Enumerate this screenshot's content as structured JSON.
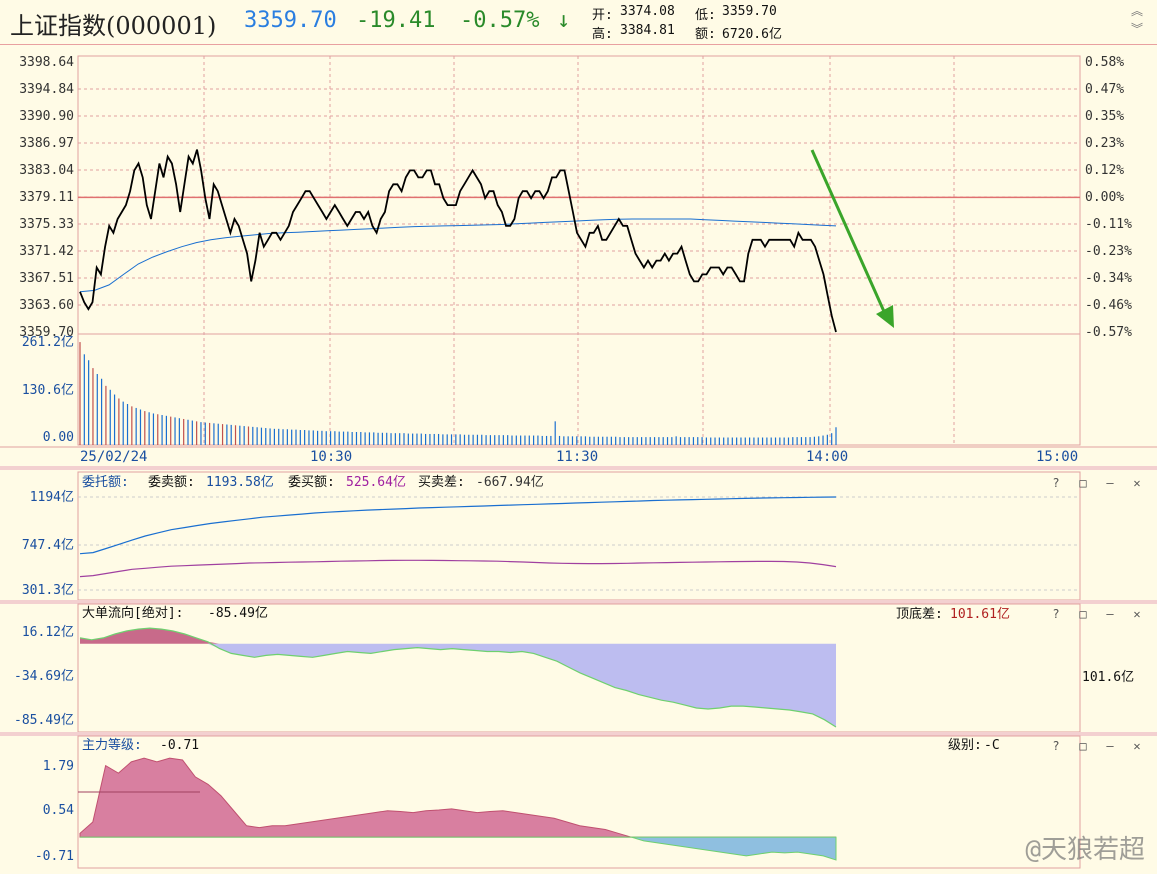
{
  "header": {
    "title": "上证指数(000001)",
    "price": "3359.70",
    "change": "-19.41",
    "change_pct": "-0.57%",
    "arrow": "↓",
    "open_label": "开:",
    "open": "3374.08",
    "low_label": "低:",
    "low": "3359.70",
    "high_label": "高:",
    "high": "3384.81",
    "amount_label": "额:",
    "amount": "6720.6亿"
  },
  "colors": {
    "up": "#c0504d",
    "down": "#2a8a2a",
    "price_line": "#000000",
    "avg_line": "#1a6fd0",
    "ref_line": "#e07070",
    "grid": "#e0a0a0",
    "text_blue": "#1a4fa0"
  },
  "icons": [
    "expand-up-icon",
    "collapse-down-icon",
    "help-icon",
    "maximize-icon",
    "minimize-icon",
    "close-icon"
  ],
  "chart_data": [
    {
      "type": "line",
      "name": "price",
      "y_left_ticks": [
        "3398.64",
        "3394.84",
        "3390.90",
        "3386.97",
        "3383.04",
        "3379.11",
        "3375.33",
        "3371.42",
        "3367.51",
        "3363.60",
        "3359.70"
      ],
      "y_right_ticks": [
        "0.58%",
        "0.47%",
        "0.35%",
        "0.23%",
        "0.12%",
        "0.00%",
        "-0.11%",
        "-0.23%",
        "-0.34%",
        "-0.46%",
        "-0.57%"
      ],
      "ylim": [
        3359.7,
        3398.64
      ],
      "prev_close": 3379.11,
      "x_ticks": [
        "25/02/24",
        "10:30",
        "11:30",
        "14:00",
        "15:00"
      ],
      "price": [
        3365.5,
        3364,
        3363,
        3364,
        3369,
        3368,
        3372,
        3375,
        3374,
        3376,
        3377,
        3378,
        3380,
        3383,
        3384,
        3382,
        3378,
        3376,
        3380,
        3384,
        3382,
        3385,
        3384,
        3381,
        3377,
        3381,
        3385,
        3384,
        3386,
        3383,
        3379,
        3376,
        3381,
        3380,
        3378,
        3376,
        3374,
        3376,
        3375,
        3373,
        3371,
        3367,
        3370,
        3374,
        3372,
        3373,
        3374,
        3374,
        3373,
        3374,
        3375,
        3377,
        3378,
        3379,
        3380,
        3380,
        3379,
        3378,
        3377,
        3376,
        3377,
        3378,
        3377,
        3376,
        3375,
        3376,
        3377,
        3377,
        3376,
        3377,
        3375,
        3374,
        3376,
        3377,
        3380,
        3381,
        3381,
        3380,
        3382,
        3383,
        3383,
        3382,
        3382,
        3383,
        3383,
        3381,
        3381,
        3379,
        3378,
        3378,
        3378,
        3380,
        3381,
        3382,
        3383,
        3382,
        3381,
        3379,
        3380,
        3380,
        3378,
        3377,
        3375,
        3375,
        3376,
        3379,
        3380,
        3380,
        3379,
        3380,
        3380,
        3379,
        3380,
        3382,
        3382,
        3383,
        3383,
        3380,
        3377,
        3374,
        3373,
        3372,
        3374,
        3374,
        3375,
        3373,
        3373,
        3374,
        3375,
        3376,
        3375,
        3375,
        3373,
        3371,
        3370,
        3369,
        3370,
        3369,
        3370,
        3370,
        3371,
        3370,
        3371,
        3371,
        3372,
        3370,
        3368,
        3367,
        3367,
        3368,
        3368,
        3369,
        3369,
        3369,
        3368,
        3369,
        3369,
        3368,
        3367,
        3367,
        3371,
        3373,
        3373,
        3373,
        3372,
        3373,
        3373,
        3373,
        3373,
        3373,
        3373,
        3372,
        3374,
        3373,
        3373,
        3373,
        3372,
        3370,
        3368,
        3365,
        3362,
        3359.7
      ],
      "avg": [
        3365.5,
        3365.7,
        3366.5,
        3368,
        3369.5,
        3370.5,
        3371.3,
        3372,
        3372.6,
        3373,
        3373.3,
        3373.5,
        3373.7,
        3373.9,
        3374,
        3374.1,
        3374.2,
        3374.3,
        3374.4,
        3374.5,
        3374.6,
        3374.7,
        3374.8,
        3374.9,
        3374.95,
        3375,
        3375.05,
        3375.1,
        3375.15,
        3375.2,
        3375.3,
        3375.4,
        3375.5,
        3375.6,
        3375.7,
        3375.8,
        3375.9,
        3375.95,
        3376,
        3376,
        3376,
        3376,
        3376,
        3375.9,
        3375.8,
        3375.7,
        3375.6,
        3375.5,
        3375.4,
        3375.3,
        3375.2,
        3375.1,
        3375
      ]
    },
    {
      "type": "bar",
      "name": "volume",
      "y_ticks": [
        "261.2亿",
        "130.6亿",
        "0.00"
      ],
      "ylim": [
        0,
        261.2
      ],
      "values": [
        261,
        230,
        215,
        195,
        180,
        168,
        150,
        140,
        128,
        118,
        110,
        104,
        98,
        94,
        90,
        86,
        83,
        80,
        78,
        76,
        74,
        72,
        70,
        68,
        66,
        64,
        62,
        60,
        58,
        57,
        56,
        55,
        54,
        53,
        52,
        51,
        50,
        49,
        48,
        47,
        46,
        45,
        44,
        43,
        42,
        41,
        41,
        40,
        40,
        39,
        39,
        38,
        38,
        37,
        37,
        36,
        36,
        35,
        35,
        35,
        34,
        34,
        34,
        33,
        33,
        33,
        32,
        32,
        32,
        31,
        31,
        31,
        30,
        30,
        30,
        30,
        29,
        29,
        29,
        29,
        28,
        28,
        28,
        28,
        27,
        27,
        27,
        27,
        27,
        26,
        26,
        26,
        26,
        26,
        25,
        25,
        25,
        25,
        25,
        25,
        24,
        24,
        24,
        24,
        24,
        24,
        24,
        23,
        23,
        23,
        60,
        23,
        22,
        22,
        22,
        22,
        22,
        22,
        21,
        21,
        21,
        21,
        21,
        21,
        21,
        20,
        20,
        20,
        20,
        20,
        20,
        20,
        20,
        20,
        20,
        20,
        20,
        20,
        22,
        20,
        20,
        20,
        20,
        20,
        20,
        19,
        19,
        19,
        19,
        19,
        19,
        19,
        19,
        19,
        19,
        19,
        19,
        19,
        19,
        19,
        19,
        19,
        19,
        19,
        19,
        20,
        20,
        20,
        20,
        20,
        21,
        22,
        24,
        26,
        30,
        45
      ]
    },
    {
      "type": "line",
      "name": "order_book",
      "label": "委托额:",
      "sell_label": "委卖额:",
      "sell_value": "1193.58亿",
      "buy_label": "委买额:",
      "buy_value": "525.64亿",
      "diff_label": "买卖差:",
      "diff_value": "-667.94亿",
      "y_ticks": [
        "1194亿",
        "747.4亿",
        "301.3亿"
      ],
      "ylim": [
        301.3,
        1194
      ],
      "sell": [
        650,
        660,
        700,
        740,
        780,
        820,
        850,
        880,
        900,
        920,
        940,
        955,
        970,
        985,
        1000,
        1010,
        1020,
        1030,
        1040,
        1048,
        1055,
        1062,
        1068,
        1073,
        1078,
        1083,
        1088,
        1092,
        1096,
        1100,
        1104,
        1108,
        1112,
        1116,
        1120,
        1124,
        1128,
        1132,
        1136,
        1140,
        1144,
        1148,
        1152,
        1156,
        1160,
        1163,
        1166,
        1169,
        1172,
        1175,
        1178,
        1181,
        1183,
        1185,
        1187,
        1189,
        1191,
        1193,
        1193.58
      ],
      "buy": [
        430,
        440,
        460,
        480,
        500,
        510,
        520,
        530,
        535,
        540,
        545,
        550,
        555,
        560,
        562,
        565,
        568,
        570,
        572,
        575,
        578,
        580,
        582,
        584,
        585,
        586,
        586,
        585,
        584,
        583,
        582,
        580,
        578,
        574,
        570,
        565,
        560,
        558,
        556,
        555,
        555,
        556,
        558,
        560,
        562,
        564,
        566,
        568,
        570,
        572,
        574,
        575,
        576,
        576,
        575,
        570,
        560,
        545,
        525.64
      ]
    },
    {
      "type": "area",
      "name": "big_order_flow",
      "label": "大单流向[绝对]:",
      "value": "-85.49亿",
      "spread_label": "顶底差:",
      "spread_value": "101.61亿",
      "right_value": "101.6亿",
      "y_ticks": [
        "16.12亿",
        "-34.69亿",
        "-85.49亿"
      ],
      "ylim": [
        -85.49,
        16.12
      ],
      "values": [
        6,
        4,
        6,
        10,
        13,
        15,
        16,
        15,
        13,
        10,
        6,
        2,
        -5,
        -10,
        -12,
        -14,
        -12,
        -11,
        -12,
        -13,
        -14,
        -12,
        -10,
        -8,
        -9,
        -10,
        -8,
        -6,
        -5,
        -4,
        -5,
        -6,
        -5,
        -6,
        -7,
        -8,
        -8,
        -9,
        -8,
        -10,
        -14,
        -18,
        -24,
        -30,
        -35,
        -40,
        -45,
        -48,
        -52,
        -55,
        -58,
        -60,
        -63,
        -66,
        -67,
        -66,
        -64,
        -64,
        -65,
        -66,
        -67,
        -68,
        -70,
        -72,
        -78,
        -85.49
      ]
    },
    {
      "type": "area",
      "name": "main_force_level",
      "label": "主力等级:",
      "value": "-0.71",
      "level_label": "级别:",
      "level_value": "-C",
      "y_ticks": [
        "1.79",
        "0.54",
        "-0.71"
      ],
      "ylim": [
        -0.71,
        2.2
      ],
      "values": [
        0,
        0.3,
        1.8,
        1.6,
        1.9,
        2.0,
        1.9,
        2.0,
        1.95,
        1.5,
        1.3,
        1.0,
        0.6,
        0.2,
        0.15,
        0.2,
        0.2,
        0.25,
        0.3,
        0.35,
        0.4,
        0.45,
        0.5,
        0.55,
        0.6,
        0.58,
        0.55,
        0.6,
        0.62,
        0.65,
        0.6,
        0.55,
        0.58,
        0.6,
        0.55,
        0.5,
        0.45,
        0.4,
        0.3,
        0.2,
        0.15,
        0.1,
        0.0,
        -0.1,
        -0.2,
        -0.25,
        -0.3,
        -0.35,
        -0.4,
        -0.45,
        -0.5,
        -0.55,
        -0.6,
        -0.55,
        -0.5,
        -0.52,
        -0.5,
        -0.55,
        -0.6,
        -0.71
      ]
    }
  ],
  "watermark": "@天狼若超"
}
